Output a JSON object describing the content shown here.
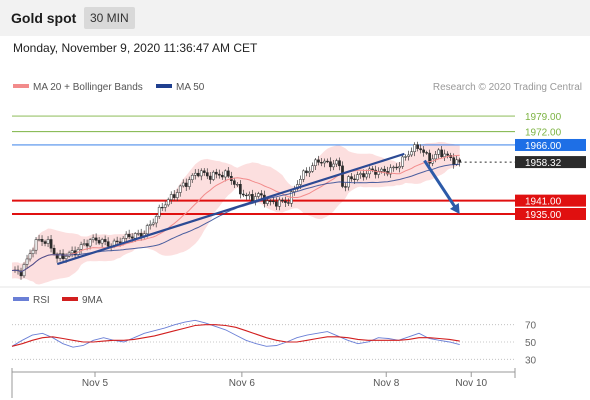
{
  "header": {
    "instrument": "Gold spot",
    "timeframe": "30 MIN",
    "timestamp": "Monday, November 9, 2020 11:36:47 AM CET"
  },
  "legend": {
    "ma20": "MA 20 + Bollinger Bands",
    "ma50": "MA 50",
    "credit": "Research © 2020 Trading Central",
    "colors": {
      "ma20": "#f28b8b",
      "ma50": "#1f3f8f"
    }
  },
  "rsi_legend": {
    "rsi": "RSI",
    "ma": "9MA",
    "colors": {
      "rsi": "#6a7fd6",
      "ma": "#d21f1f"
    }
  },
  "chart_data": [
    {
      "type": "candlestick",
      "x_ticks": [
        "Nov 5",
        "Nov 6",
        "Nov 8",
        "Nov 10"
      ],
      "ylim": [
        1904,
        1988
      ],
      "levels": [
        {
          "label": "1979.00",
          "value": 1979.0,
          "color": "#7cb342",
          "style": "thin"
        },
        {
          "label": "1972.00",
          "value": 1972.0,
          "color": "#7cb342",
          "style": "thin"
        },
        {
          "label": "1966.00",
          "value": 1966.0,
          "color": "#1e6fe6",
          "style": "thin"
        },
        {
          "label": "1958.32",
          "value": 1958.32,
          "color": "#2b2b2b",
          "style": "dotted"
        },
        {
          "label": "1941.00",
          "value": 1941.0,
          "color": "#e01010",
          "style": "thick"
        },
        {
          "label": "1935.00",
          "value": 1935.0,
          "color": "#e01010",
          "style": "thick"
        }
      ],
      "trendline": {
        "from": [
          0.09,
          1912.5
        ],
        "to": [
          0.78,
          1962
        ],
        "color": "#2c4a94"
      },
      "forecast_arrow": {
        "from": [
          0.82,
          1959
        ],
        "to": [
          0.89,
          1935
        ],
        "color": "#2c5aa8"
      },
      "price_path": [
        [
          0.0,
          1909
        ],
        [
          0.02,
          1908
        ],
        [
          0.04,
          1920
        ],
        [
          0.055,
          1925
        ],
        [
          0.075,
          1921
        ],
        [
          0.09,
          1914
        ],
        [
          0.11,
          1917
        ],
        [
          0.14,
          1921
        ],
        [
          0.17,
          1923
        ],
        [
          0.2,
          1922
        ],
        [
          0.23,
          1924
        ],
        [
          0.255,
          1926
        ],
        [
          0.28,
          1932
        ],
        [
          0.3,
          1938
        ],
        [
          0.32,
          1943
        ],
        [
          0.335,
          1948
        ],
        [
          0.35,
          1950
        ],
        [
          0.37,
          1953
        ],
        [
          0.39,
          1952
        ],
        [
          0.41,
          1954
        ],
        [
          0.43,
          1952
        ],
        [
          0.45,
          1945
        ],
        [
          0.47,
          1943
        ],
        [
          0.49,
          1944
        ],
        [
          0.51,
          1939
        ],
        [
          0.53,
          1940
        ],
        [
          0.55,
          1942
        ],
        [
          0.57,
          1950
        ],
        [
          0.59,
          1954
        ],
        [
          0.61,
          1960
        ],
        [
          0.63,
          1958
        ],
        [
          0.65,
          1957
        ],
        [
          0.66,
          1944
        ],
        [
          0.67,
          1951
        ],
        [
          0.69,
          1953
        ],
        [
          0.71,
          1954
        ],
        [
          0.73,
          1953
        ],
        [
          0.75,
          1955
        ],
        [
          0.77,
          1958
        ],
        [
          0.79,
          1962
        ],
        [
          0.81,
          1965
        ],
        [
          0.83,
          1960
        ],
        [
          0.85,
          1963
        ],
        [
          0.87,
          1959
        ],
        [
          0.89,
          1958
        ]
      ]
    },
    {
      "type": "line",
      "title": "RSI",
      "ylim": [
        20,
        80
      ],
      "y_ticks": [
        70,
        50,
        30
      ],
      "series": [
        {
          "name": "RSI",
          "color": "#6a7fd6",
          "values": [
            45,
            52,
            58,
            60,
            55,
            48,
            44,
            46,
            52,
            55,
            52,
            50,
            55,
            60,
            63,
            66,
            70,
            73,
            75,
            72,
            68,
            64,
            58,
            52,
            48,
            45,
            46,
            50,
            55,
            58,
            60,
            62,
            57,
            52,
            48,
            50,
            55,
            54,
            52,
            56,
            60,
            54,
            52,
            50,
            47
          ]
        },
        {
          "name": "9MA",
          "color": "#d21f1f",
          "values": [
            45,
            48,
            52,
            55,
            56,
            54,
            52,
            50,
            50,
            51,
            52,
            52,
            53,
            55,
            57,
            60,
            63,
            66,
            69,
            70,
            70,
            69,
            67,
            63,
            59,
            55,
            52,
            50,
            50,
            52,
            54,
            56,
            56,
            55,
            53,
            52,
            52,
            52,
            52,
            53,
            55,
            55,
            54,
            53,
            51
          ]
        }
      ]
    }
  ]
}
